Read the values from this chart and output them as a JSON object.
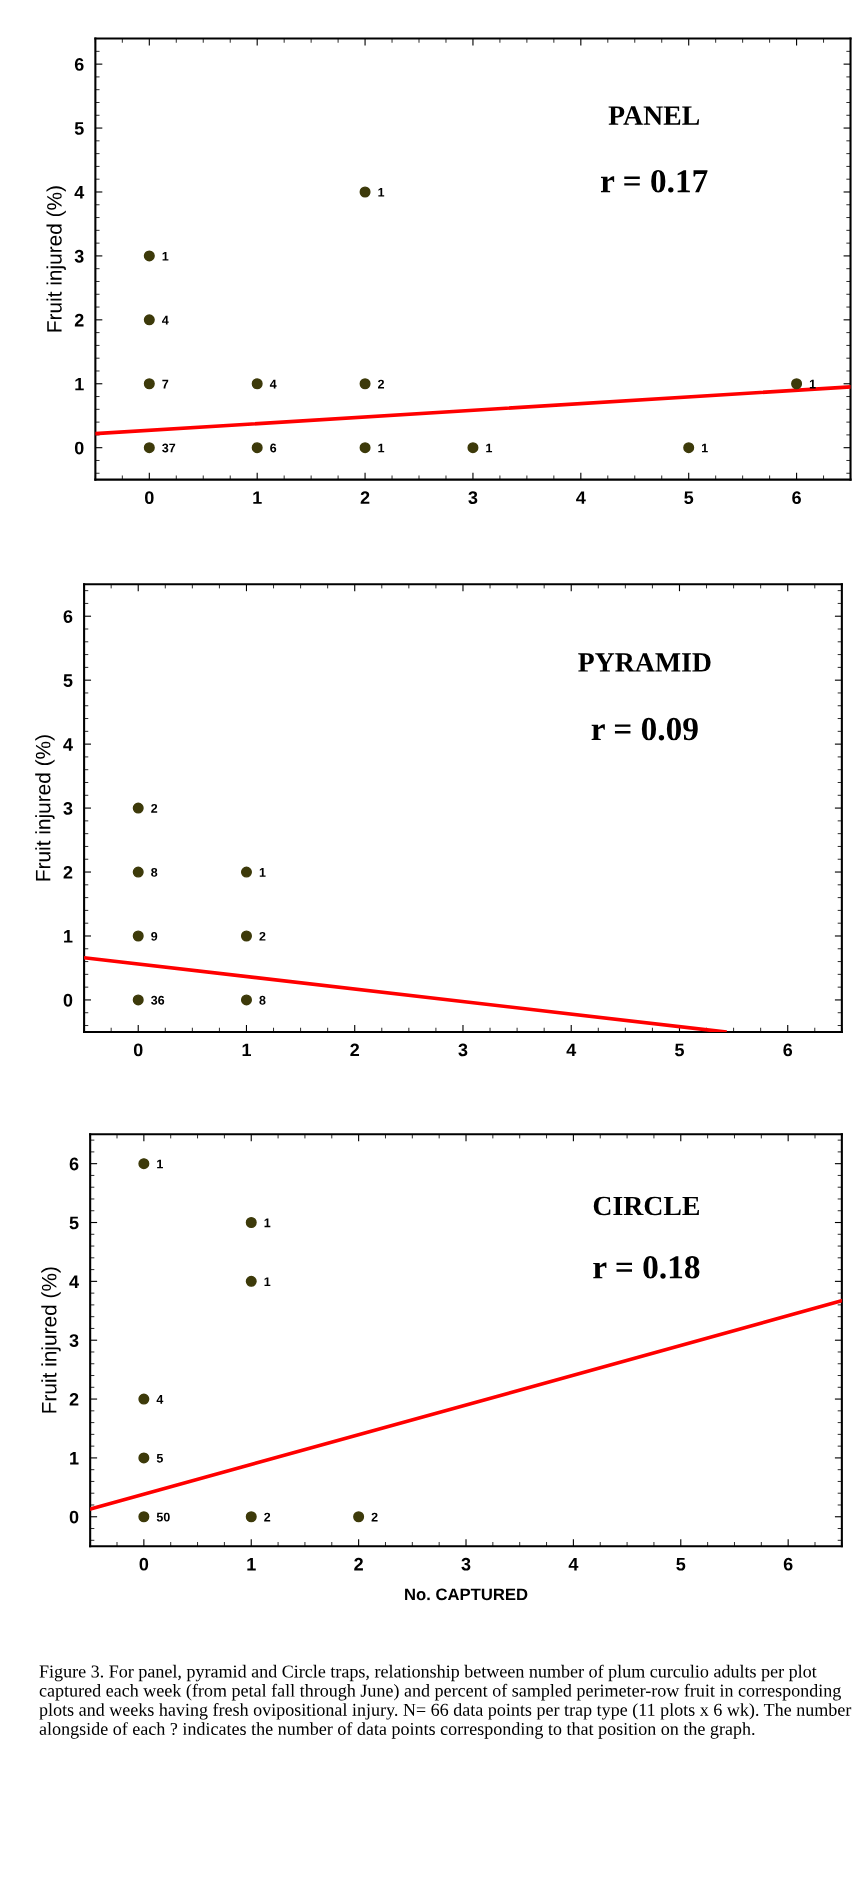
{
  "chart_data": [
    {
      "type": "scatter",
      "ylabel": "Fruit injured (%)",
      "xlim": [
        -0.5,
        6.5
      ],
      "ylim": [
        -0.5,
        6.4
      ],
      "xticks": [
        0,
        1,
        2,
        3,
        4,
        5,
        6
      ],
      "yticks": [
        0,
        1,
        2,
        3,
        4,
        5,
        6
      ],
      "grid": false,
      "legend": false,
      "annotations": [
        "PANEL",
        "r = 0.17",
        {
          "text": "37",
          "x": 0,
          "y": 0
        },
        {
          "text": "7",
          "x": 0,
          "y": 1
        },
        {
          "text": "4",
          "x": 0,
          "y": 2
        },
        {
          "text": "1",
          "x": 0,
          "y": 3
        },
        {
          "text": "6",
          "x": 1,
          "y": 0
        },
        {
          "text": "4",
          "x": 1,
          "y": 1
        },
        {
          "text": "1",
          "x": 2,
          "y": 0
        },
        {
          "text": "2",
          "x": 2,
          "y": 1
        },
        {
          "text": "1",
          "x": 2,
          "y": 4
        },
        {
          "text": "1",
          "x": 3,
          "y": 0
        },
        {
          "text": "1",
          "x": 5,
          "y": 0
        },
        {
          "text": "1",
          "x": 6,
          "y": 1
        }
      ],
      "series": [
        {
          "color": "#3d3a0a",
          "marker": "circle",
          "x": [
            0,
            0,
            0,
            0,
            1,
            1,
            2,
            2,
            2,
            3,
            5,
            6
          ],
          "values": [
            0,
            1,
            2,
            3,
            0,
            1,
            0,
            1,
            4,
            0,
            0,
            1
          ]
        },
        {
          "type": "line",
          "marker": "none",
          "color": "#ff0000",
          "x": [
            -0.5,
            6.5
          ],
          "values": [
            0.22,
            0.95
          ]
        }
      ]
    },
    {
      "type": "scatter",
      "ylabel": "Fruit injured (%)",
      "xlim": [
        -0.5,
        6.5
      ],
      "ylim": [
        -0.5,
        6.5
      ],
      "xticks": [
        0,
        1,
        2,
        3,
        4,
        5,
        6
      ],
      "yticks": [
        0,
        1,
        2,
        3,
        4,
        5,
        6
      ],
      "grid": false,
      "legend": false,
      "annotations": [
        "PYRAMID",
        "r = 0.09",
        {
          "text": "36",
          "x": 0,
          "y": 0
        },
        {
          "text": "9",
          "x": 0,
          "y": 1
        },
        {
          "text": "8",
          "x": 0,
          "y": 2
        },
        {
          "text": "2",
          "x": 0,
          "y": 3
        },
        {
          "text": "8",
          "x": 1,
          "y": 0
        },
        {
          "text": "2",
          "x": 1,
          "y": 1
        },
        {
          "text": "1",
          "x": 1,
          "y": 2
        }
      ],
      "series": [
        {
          "color": "#3d3a0a",
          "marker": "circle",
          "x": [
            0,
            0,
            0,
            0,
            1,
            1,
            1
          ],
          "values": [
            0,
            1,
            2,
            3,
            0,
            1,
            2
          ]
        },
        {
          "type": "line",
          "marker": "none",
          "color": "#ff0000",
          "x": [
            -0.5,
            5.42
          ],
          "values": [
            0.66,
            -0.5
          ]
        }
      ]
    },
    {
      "type": "scatter",
      "xlabel": "No. CAPTURED",
      "ylabel": "Fruit injured (%)",
      "xlim": [
        -0.5,
        6.5
      ],
      "ylim": [
        -0.5,
        6.5
      ],
      "xticks": [
        0,
        1,
        2,
        3,
        4,
        5,
        6
      ],
      "yticks": [
        0,
        1,
        2,
        3,
        4,
        5,
        6
      ],
      "grid": false,
      "legend": false,
      "annotations": [
        "CIRCLE",
        "r = 0.18",
        {
          "text": "50",
          "x": 0,
          "y": 0
        },
        {
          "text": "5",
          "x": 0,
          "y": 1
        },
        {
          "text": "4",
          "x": 0,
          "y": 2
        },
        {
          "text": "1",
          "x": 0,
          "y": 6
        },
        {
          "text": "2",
          "x": 1,
          "y": 0
        },
        {
          "text": "1",
          "x": 1,
          "y": 4
        },
        {
          "text": "1",
          "x": 1,
          "y": 5
        },
        {
          "text": "2",
          "x": 2,
          "y": 0
        },
        "Figure 3. For panel, pyramid and Circle traps, relationship between number of plum curculio adults per plot captured each week (from petal fall through June) and percent of sampled perimeter-row fruit in corresponding plots and weeks having fresh ovipositional injury. N= 66 data points per trap type (11 plots x 6 wk). The number alongside of each ? indicates the number of data points corresponding to that position on the graph."
      ],
      "series": [
        {
          "color": "#3d3a0a",
          "marker": "circle",
          "x": [
            0,
            0,
            0,
            0,
            1,
            1,
            1,
            2
          ],
          "values": [
            0,
            1,
            2,
            6,
            0,
            4,
            5,
            0
          ]
        },
        {
          "type": "line",
          "marker": "none",
          "color": "#ff0000",
          "x": [
            -0.5,
            6.5
          ],
          "values": [
            0.13,
            3.67
          ]
        }
      ]
    }
  ]
}
